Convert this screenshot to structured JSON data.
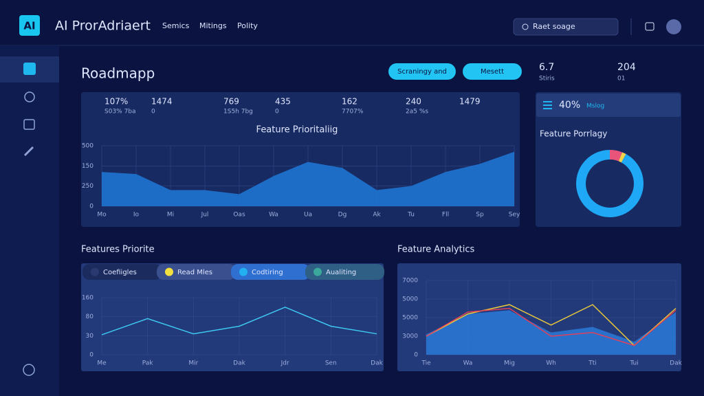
{
  "header": {
    "logo": "AI",
    "app_name": "AI ProrAdriaert",
    "nav": [
      "Semics",
      "Mitings",
      "Polity"
    ],
    "search": "Raet soage"
  },
  "page_title": "Roadmapp",
  "buttons": [
    "Scraningy and",
    "Mesett"
  ],
  "top_stats": [
    {
      "value": "6.7",
      "label": "Stiris"
    },
    {
      "value": "204",
      "label": "01"
    }
  ],
  "kpis": [
    {
      "value": "107%",
      "label": "S03% 7ba"
    },
    {
      "value": "1474",
      "label": "0"
    },
    {
      "value": "769",
      "label": "1S5h 7bg"
    },
    {
      "value": "435",
      "label": "0"
    },
    {
      "value": "162",
      "label": "7707%"
    },
    {
      "value": "240",
      "label": "2a5 %s"
    },
    {
      "value": "1479"
    }
  ],
  "area_chart": {
    "type": "area",
    "title": "Feature Prioritaliig",
    "categories": [
      "Mo",
      "Io",
      "Mi",
      "Jul",
      "Oas",
      "Wa",
      "Ua",
      "Dg",
      "Ak",
      "Tu",
      "Fll",
      "Sp",
      "Sey"
    ],
    "values": [
      1.7,
      1.6,
      0.8,
      0.8,
      0.6,
      1.5,
      2.2,
      1.9,
      0.8,
      1.0,
      1.7,
      2.1,
      2.7
    ],
    "color": "#1f78d8",
    "ylim": [
      0,
      3
    ],
    "yticks": [
      0,
      {
        "value": 1,
        "label": "250"
      },
      {
        "value": 2,
        "label": "150"
      },
      {
        "value": 3,
        "label": "500"
      }
    ]
  },
  "donut": {
    "type": "pie",
    "header_value": "40%",
    "header_label": "Mslog",
    "title": "Feature Porrlagy",
    "values": [
      6,
      2,
      92
    ],
    "colors": [
      "#e8547a",
      "#f2d34a",
      "#1ea8f5"
    ]
  },
  "line_chart": {
    "type": "line",
    "title": "Features Priorite",
    "legend": [
      "Coefiigles",
      "Read Mles",
      "Codtiring",
      "Aualiting"
    ],
    "legend_colors": [
      "#2a3a70",
      "#f2e040",
      "#22b0f0",
      "#3aa89a"
    ],
    "categories": [
      "Me",
      "Pak",
      "Mir",
      "Dak",
      "Jdr",
      "Sen",
      "Dak"
    ],
    "values": [
      1.05,
      1.9,
      1.1,
      1.5,
      2.5,
      1.5,
      1.1
    ],
    "color": "#3ec8f0",
    "ylim": [
      0,
      3
    ],
    "yticks": [
      0,
      {
        "value": 1,
        "label": "30"
      },
      {
        "value": 2,
        "label": "80"
      },
      {
        "value": 3,
        "label": "160"
      }
    ]
  },
  "multi_chart": {
    "type": "line",
    "title": "Feature Analytics",
    "categories": [
      "Tie",
      "Wa",
      "Mig",
      "Wh",
      "Tti",
      "Tui",
      "Dak"
    ],
    "ylim": [
      0,
      4
    ],
    "yticks": [
      0,
      {
        "value": 1,
        "label": "3000"
      },
      {
        "value": 2,
        "label": "5000"
      },
      {
        "value": 3,
        "label": "5000"
      },
      {
        "value": 4,
        "label": "7000"
      }
    ],
    "series": [
      {
        "color": "#2a7ad8",
        "area": true,
        "values": [
          1.1,
          2.2,
          2.4,
          1.2,
          1.5,
          0.7,
          2.3
        ]
      },
      {
        "color": "#e8c83a",
        "values": [
          1.0,
          2.2,
          2.7,
          1.6,
          2.7,
          0.5,
          2.5
        ]
      },
      {
        "color": "#e0405a",
        "values": [
          1.0,
          2.3,
          2.5,
          1.0,
          1.2,
          0.5,
          2.4
        ]
      }
    ]
  }
}
